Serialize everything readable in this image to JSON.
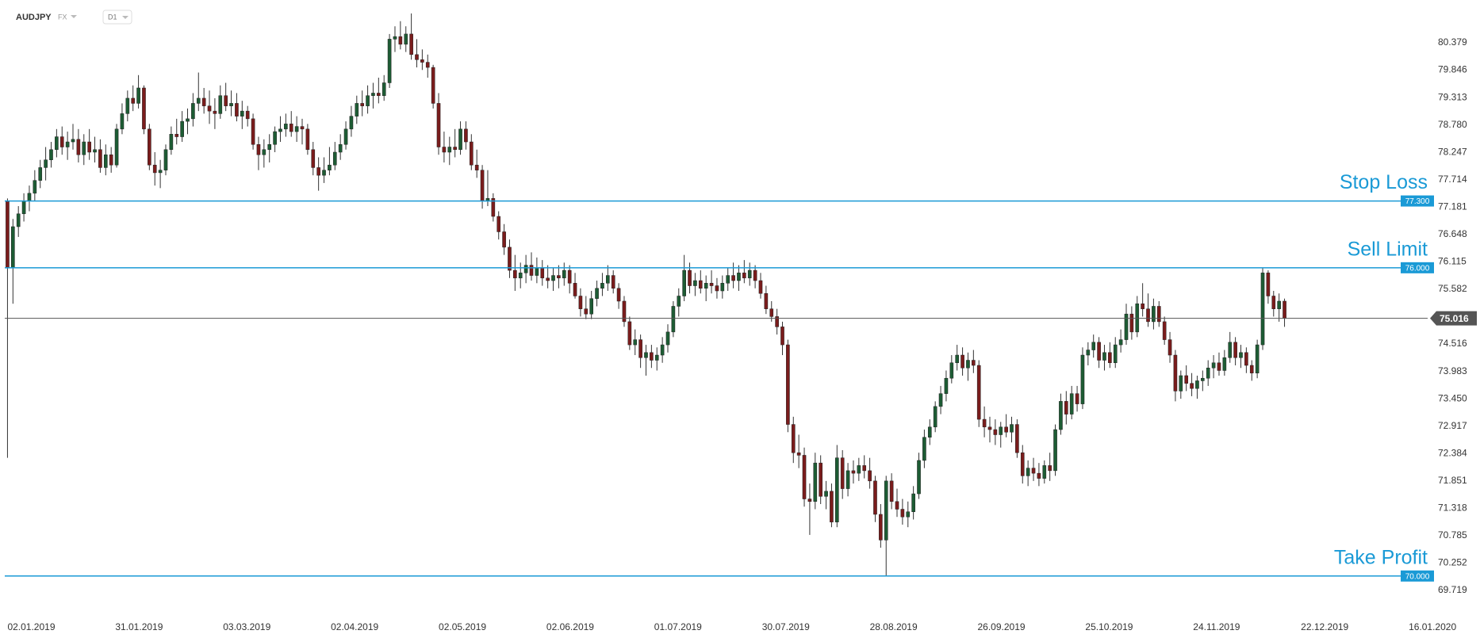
{
  "chart_data": {
    "type": "candlestick",
    "symbol": "AUDJPY",
    "market": "FX",
    "timeframe": "D1",
    "ylim": [
      69.256,
      81.212
    ],
    "yticks": [
      80.379,
      79.846,
      79.313,
      {
        "value": 78.78,
        "label": "78.780"
      },
      78.247,
      77.714,
      77.181,
      76.648,
      76.115,
      75.582,
      74.516,
      73.983,
      {
        "value": 73.45,
        "label": "73.450"
      },
      72.917,
      72.384,
      71.851,
      71.318,
      70.785,
      70.252,
      69.719
    ],
    "xlim": [
      -0.5,
      259.5
    ],
    "xticks": [
      {
        "value": 0,
        "label": "02.01.2019"
      },
      {
        "value": 19.75,
        "label": "31.01.2019"
      },
      {
        "value": 39.5,
        "label": "03.03.2019"
      },
      {
        "value": 59.25,
        "label": "02.04.2019"
      },
      {
        "value": 79,
        "label": "02.05.2019"
      },
      {
        "value": 98.75,
        "label": "02.06.2019"
      },
      {
        "value": 118.5,
        "label": "01.07.2019"
      },
      {
        "value": 138.25,
        "label": "30.07.2019"
      },
      {
        "value": 158,
        "label": "28.08.2019"
      },
      {
        "value": 177.75,
        "label": "26.09.2019"
      },
      {
        "value": 197.5,
        "label": "25.10.2019"
      },
      {
        "value": 217.25,
        "label": "24.11.2019"
      },
      {
        "value": 237,
        "label": "22.12.2019"
      },
      {
        "value": 256.75,
        "label": "16.01.2020"
      }
    ],
    "up_color": "#1d5c34",
    "down_color": "#7a1c1c",
    "wick_color": "#333333",
    "levels": [
      {
        "label": "Stop Loss",
        "value": 77.3,
        "value_label": "77.300",
        "color": "#1a9ad6"
      },
      {
        "label": "Sell Limit",
        "value": 76,
        "value_label": "76.000",
        "color": "#1a9ad6"
      },
      {
        "label": "Take Profit",
        "value": 70,
        "value_label": "70.000",
        "color": "#1a9ad6"
      }
    ],
    "current_price": 75.016,
    "current_color": "#555555",
    "candles": [
      [
        77.3,
        77.35,
        72.3,
        76.0
      ],
      [
        76.0,
        76.95,
        75.3,
        76.8
      ],
      [
        76.8,
        77.2,
        76.6,
        77.05
      ],
      [
        77.05,
        77.45,
        76.9,
        77.3
      ],
      [
        77.3,
        77.6,
        77.1,
        77.45
      ],
      [
        77.45,
        77.9,
        77.3,
        77.7
      ],
      [
        77.7,
        78.1,
        77.55,
        77.95
      ],
      [
        77.95,
        78.35,
        77.7,
        78.1
      ],
      [
        78.1,
        78.45,
        77.95,
        78.3
      ],
      [
        78.3,
        78.7,
        78.15,
        78.55
      ],
      [
        78.55,
        78.75,
        78.2,
        78.35
      ],
      [
        78.35,
        78.65,
        78.1,
        78.45
      ],
      [
        78.45,
        78.8,
        78.3,
        78.5
      ],
      [
        78.5,
        78.7,
        78.05,
        78.2
      ],
      [
        78.2,
        78.6,
        78.0,
        78.45
      ],
      [
        78.45,
        78.7,
        78.1,
        78.25
      ],
      [
        78.25,
        78.55,
        78.05,
        78.3
      ],
      [
        78.3,
        78.5,
        77.85,
        77.95
      ],
      [
        77.95,
        78.4,
        77.8,
        78.2
      ],
      [
        78.2,
        78.35,
        77.85,
        78.0
      ],
      [
        78.0,
        78.8,
        77.95,
        78.7
      ],
      [
        78.7,
        79.2,
        78.6,
        79.0
      ],
      [
        79.0,
        79.45,
        78.85,
        79.3
      ],
      [
        79.3,
        79.55,
        79.05,
        79.2
      ],
      [
        79.2,
        79.75,
        79.1,
        79.5
      ],
      [
        79.5,
        79.55,
        78.6,
        78.7
      ],
      [
        78.7,
        78.8,
        77.9,
        78.0
      ],
      [
        78.0,
        78.25,
        77.6,
        77.85
      ],
      [
        77.85,
        78.1,
        77.55,
        77.9
      ],
      [
        77.9,
        78.4,
        77.8,
        78.3
      ],
      [
        78.3,
        78.75,
        78.2,
        78.6
      ],
      [
        78.6,
        78.9,
        78.4,
        78.55
      ],
      [
        78.55,
        79.05,
        78.45,
        78.85
      ],
      [
        78.85,
        79.1,
        78.6,
        78.9
      ],
      [
        78.9,
        79.4,
        78.75,
        79.2
      ],
      [
        79.2,
        79.8,
        79.05,
        79.3
      ],
      [
        79.3,
        79.5,
        79.0,
        79.15
      ],
      [
        79.15,
        79.45,
        78.8,
        79.05
      ],
      [
        79.05,
        79.3,
        78.7,
        79.0
      ],
      [
        79.0,
        79.55,
        78.9,
        79.35
      ],
      [
        79.35,
        79.6,
        79.05,
        79.15
      ],
      [
        79.15,
        79.45,
        78.95,
        79.2
      ],
      [
        79.2,
        79.4,
        78.85,
        78.95
      ],
      [
        78.95,
        79.25,
        78.7,
        79.05
      ],
      [
        79.05,
        79.15,
        78.75,
        78.9
      ],
      [
        78.9,
        79.0,
        78.3,
        78.4
      ],
      [
        78.4,
        78.55,
        77.9,
        78.2
      ],
      [
        78.2,
        78.5,
        77.95,
        78.3
      ],
      [
        78.3,
        78.6,
        78.05,
        78.4
      ],
      [
        78.4,
        78.75,
        78.25,
        78.65
      ],
      [
        78.65,
        78.95,
        78.45,
        78.7
      ],
      [
        78.7,
        79.0,
        78.55,
        78.8
      ],
      [
        78.8,
        79.05,
        78.55,
        78.65
      ],
      [
        78.65,
        78.95,
        78.45,
        78.75
      ],
      [
        78.75,
        78.9,
        78.4,
        78.7
      ],
      [
        78.7,
        78.8,
        78.2,
        78.3
      ],
      [
        78.3,
        78.45,
        77.8,
        77.95
      ],
      [
        77.95,
        78.15,
        77.5,
        77.8
      ],
      [
        77.8,
        78.15,
        77.65,
        77.9
      ],
      [
        77.9,
        78.35,
        77.8,
        78.0
      ],
      [
        78.0,
        78.45,
        77.9,
        78.25
      ],
      [
        78.25,
        78.6,
        78.1,
        78.4
      ],
      [
        78.4,
        78.85,
        78.3,
        78.7
      ],
      [
        78.7,
        79.15,
        78.55,
        78.95
      ],
      [
        78.95,
        79.35,
        78.8,
        79.2
      ],
      [
        79.2,
        79.45,
        78.95,
        79.15
      ],
      [
        79.15,
        79.55,
        79.0,
        79.35
      ],
      [
        79.35,
        79.6,
        79.1,
        79.4
      ],
      [
        79.4,
        79.7,
        79.2,
        79.35
      ],
      [
        79.35,
        79.75,
        79.25,
        79.6
      ],
      [
        79.6,
        80.55,
        79.5,
        80.45
      ],
      [
        80.45,
        80.7,
        80.2,
        80.5
      ],
      [
        80.5,
        80.8,
        80.25,
        80.35
      ],
      [
        80.35,
        80.7,
        80.2,
        80.55
      ],
      [
        80.55,
        80.95,
        80.05,
        80.15
      ],
      [
        80.15,
        80.45,
        79.9,
        80.05
      ],
      [
        80.05,
        80.25,
        79.85,
        80.0
      ],
      [
        80.0,
        80.15,
        79.7,
        79.9
      ],
      [
        79.9,
        79.95,
        79.1,
        79.2
      ],
      [
        79.2,
        79.4,
        78.2,
        78.35
      ],
      [
        78.35,
        78.65,
        78.05,
        78.25
      ],
      [
        78.25,
        78.55,
        78.0,
        78.35
      ],
      [
        78.35,
        78.7,
        78.15,
        78.3
      ],
      [
        78.3,
        78.85,
        78.2,
        78.7
      ],
      [
        78.7,
        78.85,
        78.3,
        78.45
      ],
      [
        78.45,
        78.6,
        77.9,
        78.0
      ],
      [
        78.0,
        78.3,
        77.75,
        77.9
      ],
      [
        77.9,
        78.0,
        77.15,
        77.3
      ],
      [
        77.3,
        77.9,
        77.2,
        77.35
      ],
      [
        77.35,
        77.45,
        76.9,
        77.0
      ],
      [
        77.0,
        77.1,
        76.55,
        76.7
      ],
      [
        76.7,
        76.85,
        76.25,
        76.4
      ],
      [
        76.4,
        76.55,
        75.8,
        75.95
      ],
      [
        75.95,
        76.25,
        75.55,
        75.8
      ],
      [
        75.8,
        76.1,
        75.6,
        75.9
      ],
      [
        75.9,
        76.25,
        75.7,
        76.05
      ],
      [
        76.05,
        76.3,
        75.75,
        75.85
      ],
      [
        75.85,
        76.2,
        75.7,
        76.0
      ],
      [
        76.0,
        76.15,
        75.65,
        75.8
      ],
      [
        75.8,
        76.05,
        75.6,
        75.75
      ],
      [
        75.75,
        76.0,
        75.55,
        75.85
      ],
      [
        75.85,
        76.05,
        75.6,
        75.8
      ],
      [
        75.8,
        76.1,
        75.65,
        75.95
      ],
      [
        75.95,
        76.05,
        75.5,
        75.7
      ],
      [
        75.7,
        75.9,
        75.4,
        75.45
      ],
      [
        75.45,
        75.6,
        75.05,
        75.2
      ],
      [
        75.2,
        75.45,
        75.0,
        75.1
      ],
      [
        75.1,
        75.55,
        75.0,
        75.4
      ],
      [
        75.4,
        75.75,
        75.25,
        75.6
      ],
      [
        75.6,
        75.9,
        75.45,
        75.7
      ],
      [
        75.7,
        76.05,
        75.55,
        75.85
      ],
      [
        75.85,
        75.95,
        75.5,
        75.6
      ],
      [
        75.6,
        75.7,
        75.2,
        75.35
      ],
      [
        75.35,
        75.45,
        74.85,
        74.95
      ],
      [
        74.95,
        75.05,
        74.4,
        74.5
      ],
      [
        74.5,
        74.8,
        74.3,
        74.6
      ],
      [
        74.6,
        74.7,
        74.05,
        74.25
      ],
      [
        74.25,
        74.5,
        73.9,
        74.35
      ],
      [
        74.35,
        74.5,
        74.05,
        74.2
      ],
      [
        74.2,
        74.45,
        74.0,
        74.3
      ],
      [
        74.3,
        74.65,
        74.15,
        74.5
      ],
      [
        74.5,
        74.9,
        74.35,
        74.75
      ],
      [
        74.75,
        75.35,
        74.65,
        75.25
      ],
      [
        75.25,
        75.6,
        75.05,
        75.45
      ],
      [
        75.45,
        76.25,
        75.35,
        75.95
      ],
      [
        75.95,
        76.1,
        75.5,
        75.65
      ],
      [
        75.65,
        75.9,
        75.45,
        75.75
      ],
      [
        75.75,
        75.95,
        75.5,
        75.6
      ],
      [
        75.6,
        75.85,
        75.35,
        75.7
      ],
      [
        75.7,
        75.95,
        75.5,
        75.65
      ],
      [
        75.65,
        75.8,
        75.4,
        75.55
      ],
      [
        75.55,
        75.85,
        75.4,
        75.7
      ],
      [
        75.7,
        76.0,
        75.55,
        75.85
      ],
      [
        75.85,
        76.1,
        75.6,
        75.75
      ],
      [
        75.75,
        76.05,
        75.55,
        75.9
      ],
      [
        75.9,
        76.15,
        75.7,
        75.8
      ],
      [
        75.8,
        76.1,
        75.65,
        75.95
      ],
      [
        75.95,
        76.05,
        75.6,
        75.75
      ],
      [
        75.75,
        75.9,
        75.4,
        75.5
      ],
      [
        75.5,
        75.65,
        75.1,
        75.2
      ],
      [
        75.2,
        75.35,
        74.95,
        75.05
      ],
      [
        75.05,
        75.2,
        74.7,
        74.85
      ],
      [
        74.85,
        74.95,
        74.3,
        74.5
      ],
      [
        74.5,
        74.6,
        72.8,
        72.95
      ],
      [
        72.95,
        73.1,
        72.2,
        72.4
      ],
      [
        72.4,
        72.75,
        72.1,
        72.35
      ],
      [
        72.35,
        72.5,
        71.35,
        71.5
      ],
      [
        71.5,
        71.8,
        70.8,
        71.45
      ],
      [
        71.45,
        72.4,
        71.3,
        72.2
      ],
      [
        72.2,
        72.35,
        71.4,
        71.55
      ],
      [
        71.55,
        71.85,
        71.3,
        71.65
      ],
      [
        71.65,
        71.8,
        70.95,
        71.05
      ],
      [
        71.05,
        72.55,
        70.95,
        72.3
      ],
      [
        72.3,
        72.45,
        71.5,
        71.7
      ],
      [
        71.7,
        72.2,
        71.55,
        72.05
      ],
      [
        72.05,
        72.25,
        71.8,
        72.0
      ],
      [
        72.0,
        72.3,
        71.85,
        72.15
      ],
      [
        72.15,
        72.35,
        71.9,
        72.05
      ],
      [
        72.05,
        72.3,
        71.7,
        71.85
      ],
      [
        71.85,
        71.95,
        71.05,
        71.2
      ],
      [
        71.2,
        71.4,
        70.55,
        70.7
      ],
      [
        70.7,
        71.95,
        70.0,
        71.85
      ],
      [
        71.85,
        72.0,
        71.3,
        71.45
      ],
      [
        71.45,
        71.7,
        71.15,
        71.3
      ],
      [
        71.3,
        71.5,
        71.0,
        71.15
      ],
      [
        71.15,
        71.45,
        70.95,
        71.25
      ],
      [
        71.25,
        71.75,
        71.1,
        71.6
      ],
      [
        71.6,
        72.4,
        71.5,
        72.25
      ],
      [
        72.25,
        72.85,
        72.1,
        72.7
      ],
      [
        72.7,
        73.05,
        72.55,
        72.9
      ],
      [
        72.9,
        73.4,
        72.8,
        73.3
      ],
      [
        73.3,
        73.7,
        73.15,
        73.55
      ],
      [
        73.55,
        74.0,
        73.4,
        73.85
      ],
      [
        73.85,
        74.3,
        73.75,
        74.15
      ],
      [
        74.15,
        74.5,
        74.0,
        74.3
      ],
      [
        74.3,
        74.45,
        73.9,
        74.05
      ],
      [
        74.05,
        74.35,
        73.8,
        74.2
      ],
      [
        74.2,
        74.4,
        73.95,
        74.1
      ],
      [
        74.1,
        74.2,
        72.9,
        73.05
      ],
      [
        73.05,
        73.3,
        72.7,
        72.9
      ],
      [
        72.9,
        73.1,
        72.6,
        72.85
      ],
      [
        72.85,
        73.05,
        72.55,
        72.75
      ],
      [
        72.75,
        73.0,
        72.5,
        72.9
      ],
      [
        72.9,
        73.15,
        72.7,
        72.8
      ],
      [
        72.8,
        73.1,
        72.6,
        72.95
      ],
      [
        72.95,
        73.05,
        72.3,
        72.4
      ],
      [
        72.4,
        72.55,
        71.8,
        71.95
      ],
      [
        71.95,
        72.25,
        71.75,
        72.1
      ],
      [
        72.1,
        72.3,
        71.85,
        72.0
      ],
      [
        72.0,
        72.2,
        71.75,
        71.9
      ],
      [
        71.9,
        72.25,
        71.8,
        72.15
      ],
      [
        72.15,
        72.4,
        71.85,
        72.05
      ],
      [
        72.05,
        72.95,
        71.95,
        72.85
      ],
      [
        72.85,
        73.55,
        72.75,
        73.4
      ],
      [
        73.4,
        73.6,
        72.95,
        73.15
      ],
      [
        73.15,
        73.7,
        73.05,
        73.55
      ],
      [
        73.55,
        73.7,
        73.2,
        73.35
      ],
      [
        73.35,
        74.45,
        73.25,
        74.3
      ],
      [
        74.3,
        74.55,
        74.1,
        74.4
      ],
      [
        74.4,
        74.7,
        74.25,
        74.55
      ],
      [
        74.55,
        74.65,
        74.05,
        74.2
      ],
      [
        74.2,
        74.5,
        74.0,
        74.35
      ],
      [
        74.35,
        74.55,
        74.05,
        74.15
      ],
      [
        74.15,
        74.65,
        74.05,
        74.5
      ],
      [
        74.5,
        74.8,
        74.35,
        74.6
      ],
      [
        74.6,
        75.3,
        74.5,
        75.1
      ],
      [
        75.1,
        75.25,
        74.6,
        74.75
      ],
      [
        74.75,
        75.45,
        74.65,
        75.3
      ],
      [
        75.3,
        75.7,
        75.05,
        75.2
      ],
      [
        75.2,
        75.5,
        74.85,
        74.95
      ],
      [
        74.95,
        75.4,
        74.8,
        75.25
      ],
      [
        75.25,
        75.35,
        74.85,
        74.95
      ],
      [
        74.95,
        75.05,
        74.5,
        74.6
      ],
      [
        74.6,
        74.75,
        74.15,
        74.3
      ],
      [
        74.3,
        74.4,
        73.4,
        73.6
      ],
      [
        73.6,
        74.0,
        73.45,
        73.9
      ],
      [
        73.9,
        74.1,
        73.6,
        73.75
      ],
      [
        73.75,
        73.95,
        73.5,
        73.65
      ],
      [
        73.65,
        73.9,
        73.45,
        73.8
      ],
      [
        73.8,
        74.0,
        73.6,
        73.85
      ],
      [
        73.85,
        74.2,
        73.7,
        74.05
      ],
      [
        74.05,
        74.3,
        73.85,
        74.15
      ],
      [
        74.15,
        74.35,
        73.9,
        74.0
      ],
      [
        74.0,
        74.4,
        73.9,
        74.25
      ],
      [
        74.25,
        74.75,
        74.15,
        74.55
      ],
      [
        74.55,
        74.65,
        74.1,
        74.25
      ],
      [
        74.25,
        74.5,
        74.05,
        74.35
      ],
      [
        74.35,
        74.45,
        73.95,
        74.1
      ],
      [
        74.1,
        74.2,
        73.8,
        73.95
      ],
      [
        73.95,
        74.6,
        73.85,
        74.5
      ],
      [
        74.5,
        76.0,
        74.4,
        75.9
      ],
      [
        75.9,
        75.95,
        75.3,
        75.45
      ],
      [
        75.45,
        75.55,
        75.05,
        75.2
      ],
      [
        75.2,
        75.5,
        74.95,
        75.35
      ],
      [
        75.35,
        75.4,
        74.85,
        75.016
      ]
    ]
  }
}
